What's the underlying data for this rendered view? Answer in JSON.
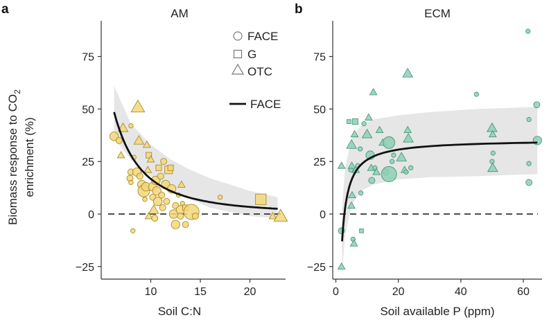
{
  "figure": {
    "ylabel_line1": "Biomass response to CO",
    "ylabel_sub": "2",
    "ylabel_line2": "enrichment (%)"
  },
  "legend": {
    "shapes": [
      {
        "shape": "circle",
        "label": "FACE"
      },
      {
        "shape": "square",
        "label": "G"
      },
      {
        "shape": "triangle",
        "label": "OTC"
      }
    ],
    "line_label": "FACE"
  },
  "chart_data": [
    {
      "panel": "a",
      "title": "AM",
      "type": "scatter",
      "xlabel": "Soil C:N",
      "ylabel": "Biomass response to CO2 enrichment (%)",
      "xlim": [
        5,
        23.6
      ],
      "ylim": [
        -31,
        92
      ],
      "xticks": [
        10,
        15,
        20
      ],
      "yticks": [
        -25,
        0,
        25,
        50,
        75
      ],
      "point_color": "#f5d77a",
      "point_stroke": "#a88d2c",
      "reference_line": {
        "y": 0,
        "style": "dashed"
      },
      "fit_line": {
        "label": "FACE",
        "x_start": 6.3,
        "x_end": 22.8,
        "y_at_start": 48.5,
        "y_at_end": 2.5
      },
      "confidence_band": {
        "x": [
          6.3,
          8,
          10,
          12,
          14,
          16,
          18,
          20,
          22.8
        ],
        "upper": [
          61,
          43,
          33,
          26,
          21,
          17,
          14,
          11,
          8
        ],
        "lower": [
          36,
          26,
          18,
          12,
          7,
          3,
          1,
          -1,
          -2
        ]
      },
      "points": [
        {
          "x": 6.3,
          "y": 37,
          "shape": "circle",
          "size": "m"
        },
        {
          "x": 6.8,
          "y": 35,
          "shape": "circle",
          "size": "s"
        },
        {
          "x": 7.2,
          "y": 41,
          "shape": "triangle",
          "size": "m"
        },
        {
          "x": 7.0,
          "y": 28,
          "shape": "triangle",
          "size": "s"
        },
        {
          "x": 8.0,
          "y": 42,
          "shape": "circle",
          "size": "xs"
        },
        {
          "x": 8.3,
          "y": 27,
          "shape": "circle",
          "size": "xs"
        },
        {
          "x": 8.0,
          "y": 20,
          "shape": "circle",
          "size": "s"
        },
        {
          "x": 7.9,
          "y": 17,
          "shape": "circle",
          "size": "s"
        },
        {
          "x": 8.0,
          "y": 15,
          "shape": "circle",
          "size": "xs"
        },
        {
          "x": 8.2,
          "y": -8,
          "shape": "circle",
          "size": "xs"
        },
        {
          "x": 8.7,
          "y": 51,
          "shape": "triangle",
          "size": "l"
        },
        {
          "x": 8.8,
          "y": 35,
          "shape": "triangle",
          "size": "m"
        },
        {
          "x": 8.6,
          "y": 20,
          "shape": "circle",
          "size": "m"
        },
        {
          "x": 8.9,
          "y": 18,
          "shape": "circle",
          "size": "s"
        },
        {
          "x": 9.1,
          "y": 14,
          "shape": "circle",
          "size": "m"
        },
        {
          "x": 9.3,
          "y": 11,
          "shape": "circle",
          "size": "l"
        },
        {
          "x": 9.5,
          "y": 13,
          "shape": "circle",
          "size": "m"
        },
        {
          "x": 9.6,
          "y": 33,
          "shape": "triangle",
          "size": "s"
        },
        {
          "x": 9.8,
          "y": 28,
          "shape": "square",
          "size": "s"
        },
        {
          "x": 9.7,
          "y": 21,
          "shape": "triangle",
          "size": "s"
        },
        {
          "x": 9.4,
          "y": 7,
          "shape": "circle",
          "size": "xs"
        },
        {
          "x": 9.8,
          "y": -1,
          "shape": "triangle",
          "size": "s"
        },
        {
          "x": 10.0,
          "y": 26,
          "shape": "triangle",
          "size": "s"
        },
        {
          "x": 10.2,
          "y": 13,
          "shape": "circle",
          "size": "m"
        },
        {
          "x": 10.2,
          "y": 8,
          "shape": "circle",
          "size": "s"
        },
        {
          "x": 10.3,
          "y": 2,
          "shape": "triangle",
          "size": "m"
        },
        {
          "x": 10.5,
          "y": 16,
          "shape": "circle",
          "size": "m"
        },
        {
          "x": 10.6,
          "y": 11,
          "shape": "circle",
          "size": "m"
        },
        {
          "x": 10.7,
          "y": 6,
          "shape": "circle",
          "size": "m"
        },
        {
          "x": 10.4,
          "y": -2,
          "shape": "circle",
          "size": "s"
        },
        {
          "x": 10.8,
          "y": 22,
          "shape": "square",
          "size": "s"
        },
        {
          "x": 11.0,
          "y": 18,
          "shape": "circle",
          "size": "s"
        },
        {
          "x": 11.1,
          "y": 9,
          "shape": "circle",
          "size": "s"
        },
        {
          "x": 11.2,
          "y": 3,
          "shape": "circle",
          "size": "s"
        },
        {
          "x": 11.3,
          "y": 25,
          "shape": "circle",
          "size": "s"
        },
        {
          "x": 11.5,
          "y": 14,
          "shape": "circle",
          "size": "m"
        },
        {
          "x": 11.6,
          "y": 6,
          "shape": "circle",
          "size": "s"
        },
        {
          "x": 11.8,
          "y": 21,
          "shape": "square",
          "size": "m"
        },
        {
          "x": 12.0,
          "y": 22,
          "shape": "square",
          "size": "s"
        },
        {
          "x": 12.1,
          "y": 12,
          "shape": "circle",
          "size": "m"
        },
        {
          "x": 12.3,
          "y": 0,
          "shape": "circle",
          "size": "m"
        },
        {
          "x": 12.5,
          "y": 4,
          "shape": "circle",
          "size": "s"
        },
        {
          "x": 12.5,
          "y": -5,
          "shape": "circle",
          "size": "m"
        },
        {
          "x": 12.8,
          "y": 9,
          "shape": "circle",
          "size": "xs"
        },
        {
          "x": 13.1,
          "y": 14,
          "shape": "triangle",
          "size": "s"
        },
        {
          "x": 13.0,
          "y": 2,
          "shape": "circle",
          "size": "m"
        },
        {
          "x": 13.0,
          "y": -1,
          "shape": "circle",
          "size": "s"
        },
        {
          "x": 13.2,
          "y": 5,
          "shape": "circle",
          "size": "xs"
        },
        {
          "x": 13.5,
          "y": 3,
          "shape": "square",
          "size": "s"
        },
        {
          "x": 13.5,
          "y": -5,
          "shape": "circle",
          "size": "s"
        },
        {
          "x": 14.1,
          "y": 1,
          "shape": "circle",
          "size": "xl"
        },
        {
          "x": 14.5,
          "y": -1,
          "shape": "circle",
          "size": "s"
        },
        {
          "x": 17.0,
          "y": 8,
          "shape": "circle",
          "size": "xs"
        },
        {
          "x": 21.1,
          "y": 7,
          "shape": "square",
          "size": "l"
        },
        {
          "x": 22.3,
          "y": -1,
          "shape": "triangle",
          "size": "s"
        },
        {
          "x": 23.1,
          "y": -1,
          "shape": "triangle",
          "size": "l"
        }
      ]
    },
    {
      "panel": "b",
      "title": "ECM",
      "type": "scatter",
      "xlabel": "Soil available P (ppm)",
      "ylabel": "",
      "xlim": [
        -1,
        66
      ],
      "ylim": [
        -31,
        92
      ],
      "xticks": [
        0,
        20,
        40,
        60
      ],
      "yticks": [
        -25,
        0,
        25,
        50,
        75
      ],
      "point_color": "#8ecfb5",
      "point_stroke": "#4a9a7c",
      "reference_line": {
        "y": 0,
        "style": "dashed"
      },
      "fit_line": {
        "label": "FACE",
        "x_start": 2,
        "x_end": 64.5,
        "y_at_start": -13,
        "y_at_end": 34
      },
      "confidence_band": {
        "x": [
          2,
          3,
          5,
          8,
          12,
          20,
          30,
          45,
          64.5
        ],
        "upper": [
          4,
          22,
          36,
          42,
          45,
          47,
          48.5,
          50,
          51
        ],
        "lower": [
          -28,
          -10,
          4,
          11,
          14,
          16.5,
          17.5,
          18,
          19
        ]
      },
      "points": [
        {
          "x": 1.8,
          "y": 23,
          "shape": "triangle",
          "size": "s"
        },
        {
          "x": 1.8,
          "y": -8,
          "shape": "circle",
          "size": "s"
        },
        {
          "x": 1.8,
          "y": -25,
          "shape": "triangle",
          "size": "s"
        },
        {
          "x": 4.2,
          "y": 44,
          "shape": "square",
          "size": "xs"
        },
        {
          "x": 4.8,
          "y": 21,
          "shape": "circle",
          "size": "xs"
        },
        {
          "x": 5.0,
          "y": 33,
          "shape": "triangle",
          "size": "m"
        },
        {
          "x": 5.1,
          "y": 23,
          "shape": "triangle",
          "size": "s"
        },
        {
          "x": 5.2,
          "y": 9,
          "shape": "triangle",
          "size": "s"
        },
        {
          "x": 5.0,
          "y": 4,
          "shape": "triangle",
          "size": "s"
        },
        {
          "x": 5.5,
          "y": -12,
          "shape": "circle",
          "size": "xs"
        },
        {
          "x": 5.8,
          "y": -14,
          "shape": "triangle",
          "size": "s"
        },
        {
          "x": 6.0,
          "y": 38,
          "shape": "triangle",
          "size": "s"
        },
        {
          "x": 6.2,
          "y": 44,
          "shape": "square",
          "size": "s"
        },
        {
          "x": 6.4,
          "y": 21,
          "shape": "triangle",
          "size": "s"
        },
        {
          "x": 7.0,
          "y": 23,
          "shape": "circle",
          "size": "xs"
        },
        {
          "x": 7.8,
          "y": 31,
          "shape": "circle",
          "size": "xs"
        },
        {
          "x": 8.0,
          "y": 10,
          "shape": "circle",
          "size": "xs"
        },
        {
          "x": 8.2,
          "y": -8,
          "shape": "square",
          "size": "xs"
        },
        {
          "x": 9.0,
          "y": 43,
          "shape": "circle",
          "size": "xs"
        },
        {
          "x": 10.0,
          "y": 38,
          "shape": "triangle",
          "size": "m"
        },
        {
          "x": 10.5,
          "y": 46,
          "shape": "triangle",
          "size": "s"
        },
        {
          "x": 11.0,
          "y": 28,
          "shape": "circle",
          "size": "m"
        },
        {
          "x": 11.3,
          "y": 22,
          "shape": "triangle",
          "size": "s"
        },
        {
          "x": 11.5,
          "y": 16,
          "shape": "circle",
          "size": "s"
        },
        {
          "x": 12.0,
          "y": 58,
          "shape": "triangle",
          "size": "s"
        },
        {
          "x": 12.5,
          "y": 22,
          "shape": "circle",
          "size": "xs"
        },
        {
          "x": 13.0,
          "y": 20,
          "shape": "triangle",
          "size": "s"
        },
        {
          "x": 14.0,
          "y": 40,
          "shape": "triangle",
          "size": "s"
        },
        {
          "x": 15.0,
          "y": 34,
          "shape": "triangle",
          "size": "s"
        },
        {
          "x": 16.0,
          "y": 20,
          "shape": "circle",
          "size": "s"
        },
        {
          "x": 17.0,
          "y": 34,
          "shape": "circle",
          "size": "l"
        },
        {
          "x": 17.0,
          "y": 19,
          "shape": "circle",
          "size": "xl"
        },
        {
          "x": 18.0,
          "y": 25,
          "shape": "circle",
          "size": "xs"
        },
        {
          "x": 18.5,
          "y": 28,
          "shape": "circle",
          "size": "xs"
        },
        {
          "x": 21.0,
          "y": 27,
          "shape": "triangle",
          "size": "m"
        },
        {
          "x": 22.0,
          "y": 21,
          "shape": "triangle",
          "size": "s"
        },
        {
          "x": 22.5,
          "y": 20,
          "shape": "circle",
          "size": "xs"
        },
        {
          "x": 23.0,
          "y": 67,
          "shape": "triangle",
          "size": "m"
        },
        {
          "x": 23.0,
          "y": 40,
          "shape": "triangle",
          "size": "s"
        },
        {
          "x": 23.2,
          "y": 36,
          "shape": "triangle",
          "size": "m"
        },
        {
          "x": 24.0,
          "y": 22,
          "shape": "circle",
          "size": "xs"
        },
        {
          "x": 45.0,
          "y": 57,
          "shape": "circle",
          "size": "xs"
        },
        {
          "x": 50.0,
          "y": 41,
          "shape": "triangle",
          "size": "m"
        },
        {
          "x": 50.2,
          "y": 38,
          "shape": "triangle",
          "size": "s"
        },
        {
          "x": 50.3,
          "y": 29,
          "shape": "circle",
          "size": "xs"
        },
        {
          "x": 50.0,
          "y": 25,
          "shape": "circle",
          "size": "xs"
        },
        {
          "x": 50.2,
          "y": 22,
          "shape": "triangle",
          "size": "m"
        },
        {
          "x": 61.5,
          "y": 87,
          "shape": "circle",
          "size": "xs"
        },
        {
          "x": 61.8,
          "y": 45,
          "shape": "circle",
          "size": "xs"
        },
        {
          "x": 61.8,
          "y": 24,
          "shape": "circle",
          "size": "xs"
        },
        {
          "x": 61.8,
          "y": 15,
          "shape": "circle",
          "size": "s"
        },
        {
          "x": 64.3,
          "y": 52,
          "shape": "circle",
          "size": "s"
        },
        {
          "x": 64.5,
          "y": 35,
          "shape": "circle",
          "size": "m"
        }
      ]
    }
  ]
}
